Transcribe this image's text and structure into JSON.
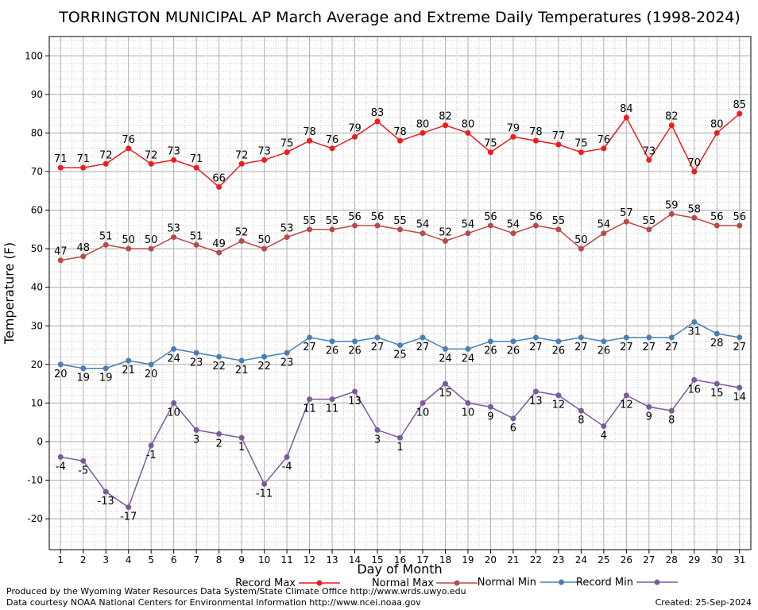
{
  "footer": {
    "credit_line1": "Produced by the Wyoming Water Resources Data System/State Climate Office http://www.wrds.uwyo.edu",
    "credit_line2": "Data courtesy NOAA National Centers for Environmental Information http://www.ncei.noaa.gov",
    "created": "Created:  25-Sep-2024"
  },
  "chart_data": {
    "type": "line",
    "title": "TORRINGTON MUNICIPAL AP March Average and Extreme Daily Temperatures (1998-2024)",
    "xlabel": "Day of Month",
    "ylabel": "Temperature (F)",
    "x": [
      1,
      2,
      3,
      4,
      5,
      6,
      7,
      8,
      9,
      10,
      11,
      12,
      13,
      14,
      15,
      16,
      17,
      18,
      19,
      20,
      21,
      22,
      23,
      24,
      25,
      26,
      27,
      28,
      29,
      30,
      31
    ],
    "xlim": [
      0.5,
      31.5
    ],
    "ylim": [
      -28,
      105
    ],
    "yticks": [
      -20,
      -10,
      0,
      10,
      20,
      30,
      40,
      50,
      60,
      70,
      80,
      90,
      100
    ],
    "grid": true,
    "legend_position": "bottom",
    "series": [
      {
        "name": "Record Max",
        "color": "#ee1c1c",
        "label_position": "above",
        "values": [
          71,
          71,
          72,
          76,
          72,
          73,
          71,
          66,
          72,
          73,
          75,
          78,
          76,
          79,
          83,
          78,
          80,
          82,
          80,
          75,
          79,
          78,
          77,
          75,
          76,
          84,
          73,
          82,
          70,
          80,
          85
        ]
      },
      {
        "name": "Normal Max",
        "color": "#b94a48",
        "label_position": "above",
        "values": [
          47,
          48,
          51,
          50,
          50,
          53,
          51,
          49,
          52,
          50,
          53,
          55,
          55,
          56,
          56,
          55,
          54,
          52,
          54,
          56,
          54,
          56,
          55,
          50,
          54,
          57,
          55,
          59,
          58,
          56,
          56
        ]
      },
      {
        "name": "Normal Min",
        "color": "#4a7fb5",
        "label_position": "below",
        "values": [
          20,
          19,
          19,
          21,
          20,
          24,
          23,
          22,
          21,
          22,
          23,
          27,
          26,
          26,
          27,
          25,
          27,
          24,
          24,
          26,
          26,
          27,
          26,
          27,
          26,
          27,
          27,
          27,
          31,
          28,
          27
        ]
      },
      {
        "name": "Record Min",
        "color": "#7b5a9c",
        "label_position": "below",
        "values": [
          -4,
          -5,
          -13,
          -17,
          -1,
          10,
          3,
          2,
          1,
          -11,
          -4,
          11,
          11,
          13,
          3,
          1,
          10,
          15,
          10,
          9,
          6,
          13,
          12,
          8,
          4,
          12,
          9,
          8,
          16,
          15,
          14
        ]
      }
    ]
  }
}
